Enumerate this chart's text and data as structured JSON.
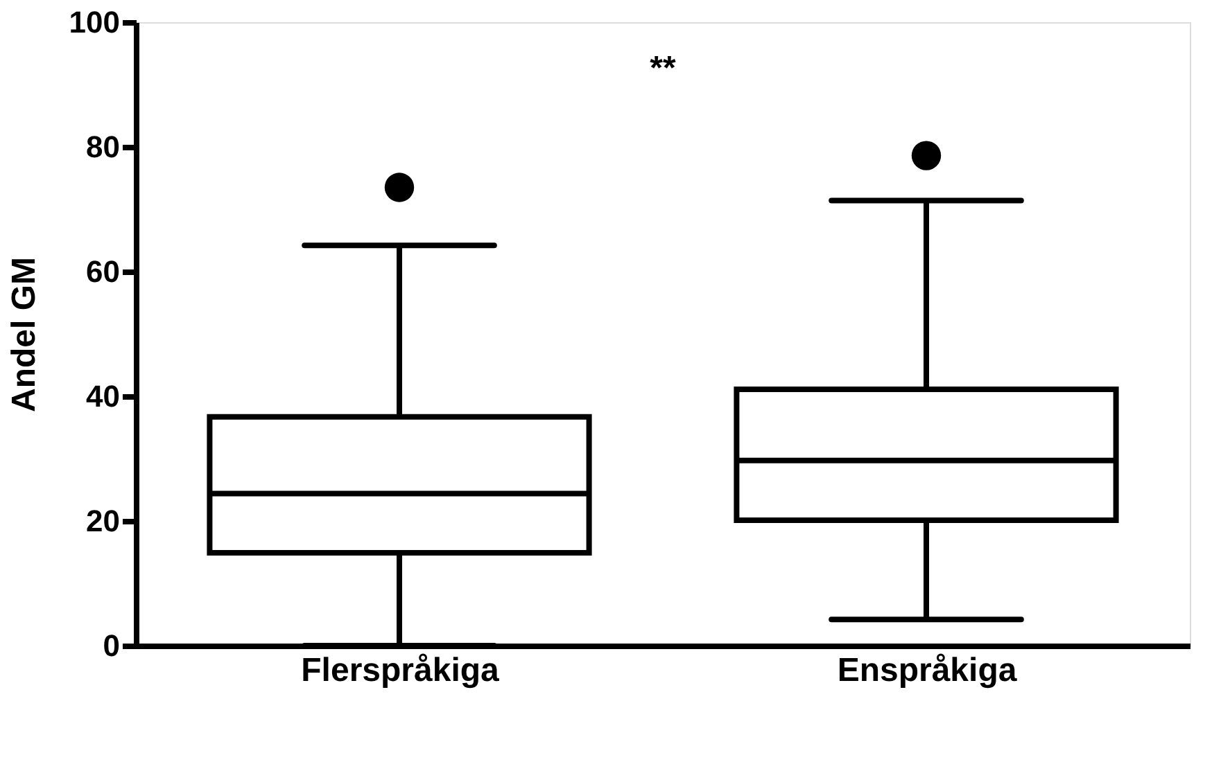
{
  "chart_data": {
    "type": "box",
    "ylabel": "Andel GM",
    "categories": [
      "Flerspråkiga",
      "Enspråkiga"
    ],
    "boxes": [
      {
        "low": 0,
        "q1": 14.9,
        "median": 24.4,
        "q3": 36.7,
        "high": 64.2,
        "outliers": [
          73.5
        ]
      },
      {
        "low": 4.2,
        "q1": 20.1,
        "median": 29.7,
        "q3": 41.1,
        "high": 71.4,
        "outliers": [
          78.6
        ]
      }
    ],
    "ylim": [
      0,
      100
    ],
    "yticks": [
      0,
      20,
      40,
      60,
      80,
      100
    ],
    "grid": false,
    "annotations": [
      "**"
    ]
  }
}
